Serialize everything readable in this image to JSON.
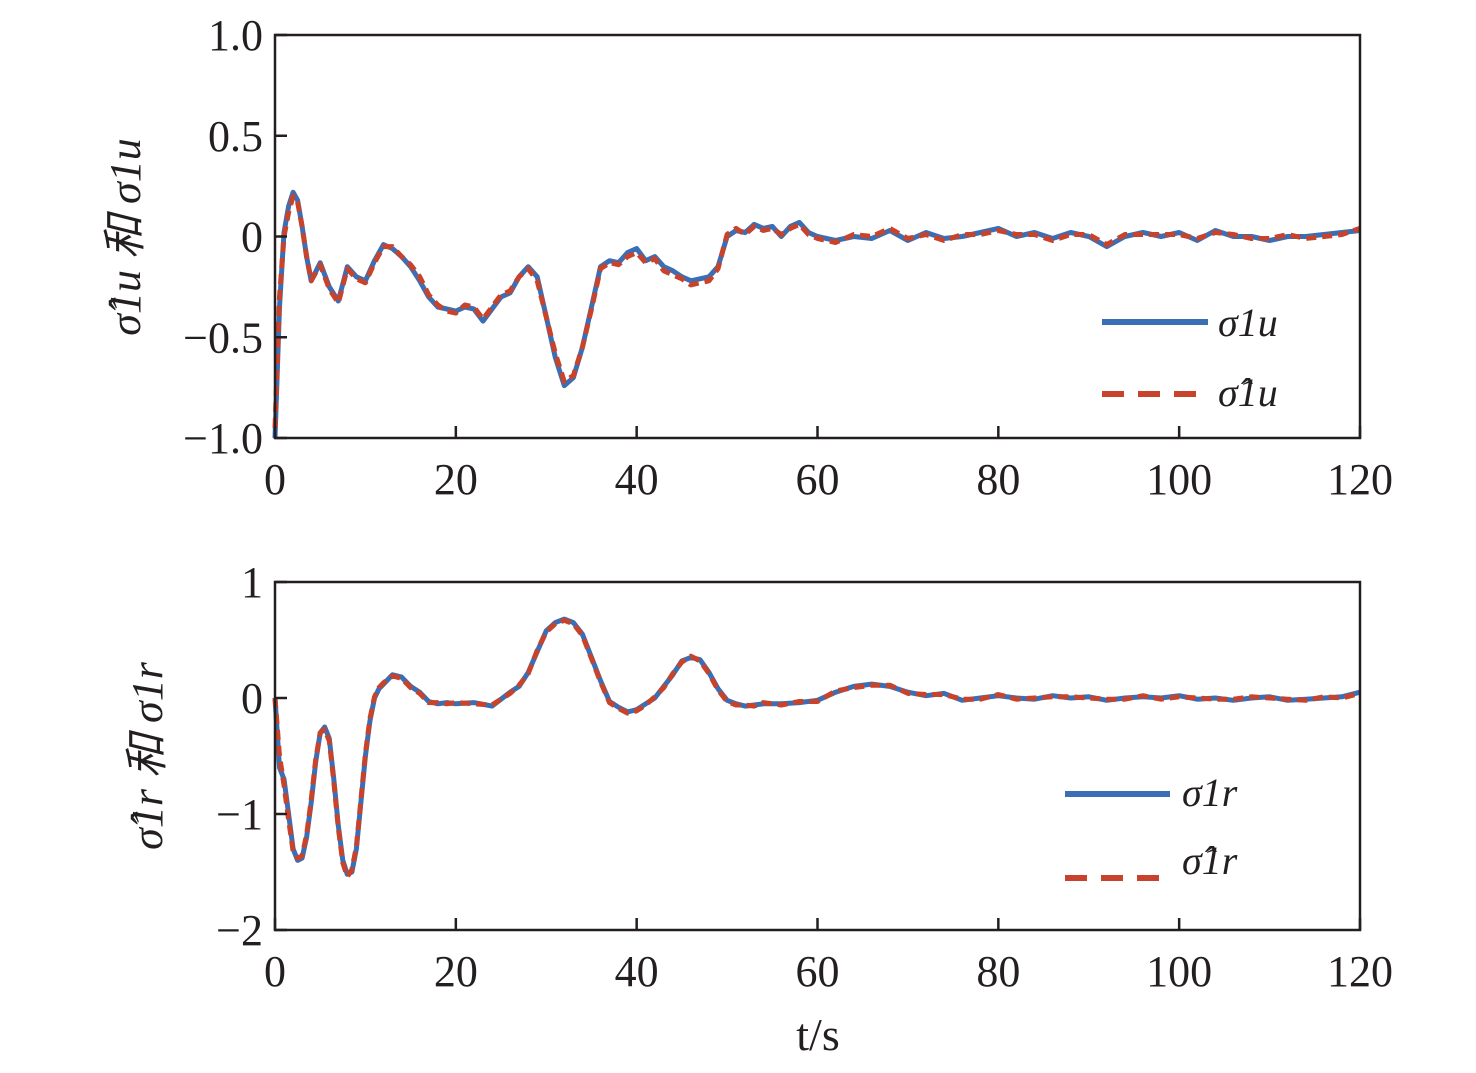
{
  "chart_data": [
    {
      "type": "line",
      "ylabel": "σ̂1u 和 σ1u",
      "xlim": [
        0,
        120
      ],
      "ylim": [
        -1.0,
        1.0
      ],
      "xticks": [
        "0",
        "20",
        "40",
        "60",
        "80",
        "100",
        "120"
      ],
      "yticks": [
        "−1.0",
        "−0.5",
        "0",
        "0.5",
        "1.0"
      ],
      "legend_position": "lower-right",
      "grid": false,
      "series": [
        {
          "name": "σ1u",
          "color": "#3a6eb5",
          "style": "solid",
          "x": [
            0,
            0.5,
            1,
            1.5,
            2,
            2.5,
            3,
            3.5,
            4,
            5,
            6,
            7,
            8,
            9,
            10,
            11,
            12,
            13,
            14,
            15,
            16,
            17,
            18,
            19,
            20,
            21,
            22,
            23,
            24,
            25,
            26,
            27,
            28,
            29,
            30,
            31,
            32,
            33,
            34,
            35,
            36,
            37,
            38,
            39,
            40,
            41,
            42,
            43,
            44,
            45,
            46,
            47,
            48,
            49,
            50,
            51,
            52,
            53,
            54,
            55,
            56,
            57,
            58,
            59,
            60,
            62,
            64,
            66,
            68,
            70,
            72,
            74,
            76,
            78,
            80,
            82,
            84,
            86,
            88,
            90,
            92,
            94,
            96,
            98,
            100,
            102,
            104,
            106,
            108,
            110,
            112,
            114,
            116,
            118,
            120
          ],
          "y": [
            -1.0,
            -0.35,
            0.02,
            0.15,
            0.22,
            0.18,
            0.05,
            -0.1,
            -0.22,
            -0.13,
            -0.25,
            -0.32,
            -0.15,
            -0.2,
            -0.22,
            -0.12,
            -0.04,
            -0.06,
            -0.1,
            -0.15,
            -0.22,
            -0.3,
            -0.35,
            -0.36,
            -0.37,
            -0.35,
            -0.36,
            -0.42,
            -0.36,
            -0.3,
            -0.28,
            -0.2,
            -0.15,
            -0.2,
            -0.4,
            -0.6,
            -0.74,
            -0.7,
            -0.55,
            -0.35,
            -0.15,
            -0.12,
            -0.13,
            -0.08,
            -0.06,
            -0.12,
            -0.1,
            -0.15,
            -0.17,
            -0.2,
            -0.22,
            -0.21,
            -0.2,
            -0.15,
            0.0,
            0.03,
            0.02,
            0.06,
            0.04,
            0.05,
            0.0,
            0.05,
            0.07,
            0.02,
            0.0,
            -0.02,
            0.0,
            -0.01,
            0.03,
            -0.02,
            0.02,
            -0.01,
            0.0,
            0.02,
            0.04,
            0.0,
            0.02,
            -0.01,
            0.02,
            0.0,
            -0.05,
            0.0,
            0.02,
            0.0,
            0.02,
            -0.02,
            0.03,
            0.0,
            0.0,
            -0.02,
            0.0,
            0.0,
            0.01,
            0.02,
            0.03
          ]
        },
        {
          "name": "σ̂1u",
          "color": "#c8432b",
          "style": "dashed",
          "x": [
            0,
            0.5,
            1,
            1.5,
            2,
            2.5,
            3,
            3.5,
            4,
            5,
            6,
            7,
            8,
            9,
            10,
            11,
            12,
            13,
            14,
            15,
            16,
            17,
            18,
            19,
            20,
            21,
            22,
            23,
            24,
            25,
            26,
            27,
            28,
            29,
            30,
            31,
            32,
            33,
            34,
            35,
            36,
            37,
            38,
            39,
            40,
            41,
            42,
            43,
            44,
            45,
            46,
            47,
            48,
            49,
            50,
            51,
            52,
            53,
            54,
            55,
            56,
            57,
            58,
            59,
            60,
            62,
            64,
            66,
            68,
            70,
            72,
            74,
            76,
            78,
            80,
            82,
            84,
            86,
            88,
            90,
            92,
            94,
            96,
            98,
            100,
            102,
            104,
            106,
            108,
            110,
            112,
            114,
            116,
            118,
            120
          ],
          "y": [
            -0.95,
            -0.3,
            0.0,
            0.12,
            0.2,
            0.17,
            0.05,
            -0.1,
            -0.22,
            -0.14,
            -0.26,
            -0.33,
            -0.16,
            -0.21,
            -0.23,
            -0.13,
            -0.05,
            -0.05,
            -0.1,
            -0.14,
            -0.2,
            -0.29,
            -0.34,
            -0.37,
            -0.38,
            -0.34,
            -0.35,
            -0.41,
            -0.35,
            -0.29,
            -0.27,
            -0.2,
            -0.16,
            -0.22,
            -0.4,
            -0.58,
            -0.72,
            -0.69,
            -0.55,
            -0.36,
            -0.16,
            -0.13,
            -0.14,
            -0.1,
            -0.08,
            -0.13,
            -0.11,
            -0.17,
            -0.19,
            -0.21,
            -0.24,
            -0.23,
            -0.22,
            -0.16,
            0.01,
            0.04,
            0.01,
            0.05,
            0.03,
            0.04,
            0.01,
            0.04,
            0.06,
            0.01,
            -0.01,
            -0.03,
            0.01,
            0.0,
            0.04,
            -0.01,
            0.01,
            -0.02,
            0.01,
            0.01,
            0.03,
            0.01,
            0.01,
            -0.02,
            0.01,
            0.01,
            -0.04,
            0.01,
            0.01,
            0.01,
            0.01,
            -0.01,
            0.02,
            0.01,
            -0.01,
            -0.01,
            0.01,
            -0.01,
            0.0,
            0.01,
            0.04
          ]
        }
      ]
    },
    {
      "type": "line",
      "ylabel": "σ̂1r 和 σ1r",
      "xlabel": "t/s",
      "xlim": [
        0,
        120
      ],
      "ylim": [
        -2,
        1
      ],
      "xticks": [
        "0",
        "20",
        "40",
        "60",
        "80",
        "100",
        "120"
      ],
      "yticks": [
        "−2",
        "−1",
        "0",
        "1"
      ],
      "legend_position": "lower-right",
      "grid": false,
      "series": [
        {
          "name": "σ1r",
          "color": "#3a6eb5",
          "style": "solid",
          "x": [
            0,
            0.5,
            1,
            1.5,
            2,
            2.5,
            3,
            3.5,
            4,
            4.5,
            5,
            5.5,
            6,
            6.5,
            7,
            7.5,
            8,
            8.5,
            9,
            9.5,
            10,
            10.5,
            11,
            11.5,
            12,
            13,
            14,
            15,
            16,
            17,
            18,
            19,
            20,
            22,
            24,
            26,
            27,
            28,
            29,
            30,
            31,
            32,
            33,
            34,
            35,
            36,
            37,
            38,
            39,
            40,
            41,
            42,
            43,
            44,
            45,
            46,
            47,
            48,
            49,
            50,
            51,
            52,
            53,
            54,
            56,
            58,
            60,
            62,
            64,
            66,
            68,
            70,
            72,
            74,
            76,
            78,
            80,
            82,
            84,
            86,
            88,
            90,
            92,
            94,
            96,
            98,
            100,
            102,
            104,
            106,
            108,
            110,
            112,
            114,
            116,
            118,
            120
          ],
          "y": [
            0.0,
            -0.6,
            -0.7,
            -1.0,
            -1.3,
            -1.4,
            -1.38,
            -1.2,
            -0.9,
            -0.55,
            -0.3,
            -0.25,
            -0.35,
            -0.7,
            -1.1,
            -1.4,
            -1.52,
            -1.5,
            -1.3,
            -0.9,
            -0.5,
            -0.2,
            0.0,
            0.08,
            0.12,
            0.2,
            0.18,
            0.1,
            0.05,
            -0.03,
            -0.05,
            -0.04,
            -0.05,
            -0.04,
            -0.07,
            0.05,
            0.1,
            0.22,
            0.4,
            0.58,
            0.65,
            0.68,
            0.65,
            0.55,
            0.35,
            0.15,
            -0.03,
            -0.08,
            -0.12,
            -0.1,
            -0.05,
            0.0,
            0.1,
            0.2,
            0.32,
            0.35,
            0.33,
            0.22,
            0.08,
            -0.02,
            -0.05,
            -0.07,
            -0.06,
            -0.05,
            -0.05,
            -0.04,
            -0.02,
            0.05,
            0.1,
            0.12,
            0.1,
            0.05,
            0.02,
            0.04,
            -0.02,
            0.0,
            0.02,
            0.0,
            -0.01,
            0.02,
            0.0,
            0.01,
            -0.02,
            0.0,
            0.01,
            0.0,
            0.02,
            -0.01,
            0.0,
            -0.02,
            0.0,
            0.01,
            -0.02,
            -0.01,
            0.0,
            0.01,
            0.05
          ]
        },
        {
          "name": "σ̂1r",
          "color": "#c8432b",
          "style": "dashed",
          "x": [
            0,
            0.5,
            1,
            1.5,
            2,
            2.5,
            3,
            3.5,
            4,
            4.5,
            5,
            5.5,
            6,
            6.5,
            7,
            7.5,
            8,
            8.5,
            9,
            9.5,
            10,
            10.5,
            11,
            11.5,
            12,
            13,
            14,
            15,
            16,
            17,
            18,
            19,
            20,
            22,
            24,
            26,
            27,
            28,
            29,
            30,
            31,
            32,
            33,
            34,
            35,
            36,
            37,
            38,
            39,
            40,
            41,
            42,
            43,
            44,
            45,
            46,
            47,
            48,
            49,
            50,
            51,
            52,
            53,
            54,
            56,
            58,
            60,
            62,
            64,
            66,
            68,
            70,
            72,
            74,
            76,
            78,
            80,
            82,
            84,
            86,
            88,
            90,
            92,
            94,
            96,
            98,
            100,
            102,
            104,
            106,
            108,
            110,
            112,
            114,
            116,
            118,
            120
          ],
          "y": [
            0.0,
            -0.5,
            -0.75,
            -1.05,
            -1.32,
            -1.38,
            -1.36,
            -1.18,
            -0.88,
            -0.53,
            -0.3,
            -0.27,
            -0.37,
            -0.72,
            -1.12,
            -1.42,
            -1.54,
            -1.48,
            -1.28,
            -0.88,
            -0.48,
            -0.18,
            0.01,
            0.09,
            0.13,
            0.19,
            0.17,
            0.09,
            0.04,
            -0.04,
            -0.04,
            -0.05,
            -0.04,
            -0.05,
            -0.06,
            0.04,
            0.11,
            0.21,
            0.41,
            0.57,
            0.64,
            0.67,
            0.64,
            0.54,
            0.34,
            0.14,
            -0.04,
            -0.09,
            -0.13,
            -0.11,
            -0.06,
            0.01,
            0.09,
            0.21,
            0.31,
            0.36,
            0.32,
            0.21,
            0.07,
            -0.03,
            -0.06,
            -0.06,
            -0.07,
            -0.04,
            -0.06,
            -0.03,
            -0.03,
            0.06,
            0.09,
            0.11,
            0.11,
            0.04,
            0.03,
            0.03,
            -0.01,
            -0.01,
            0.03,
            -0.01,
            0.0,
            0.01,
            0.01,
            0.0,
            -0.01,
            -0.01,
            0.02,
            -0.01,
            0.01,
            0.0,
            -0.01,
            -0.01,
            0.01,
            0.0,
            -0.01,
            -0.02,
            0.01,
            0.0,
            0.04
          ]
        }
      ]
    }
  ]
}
